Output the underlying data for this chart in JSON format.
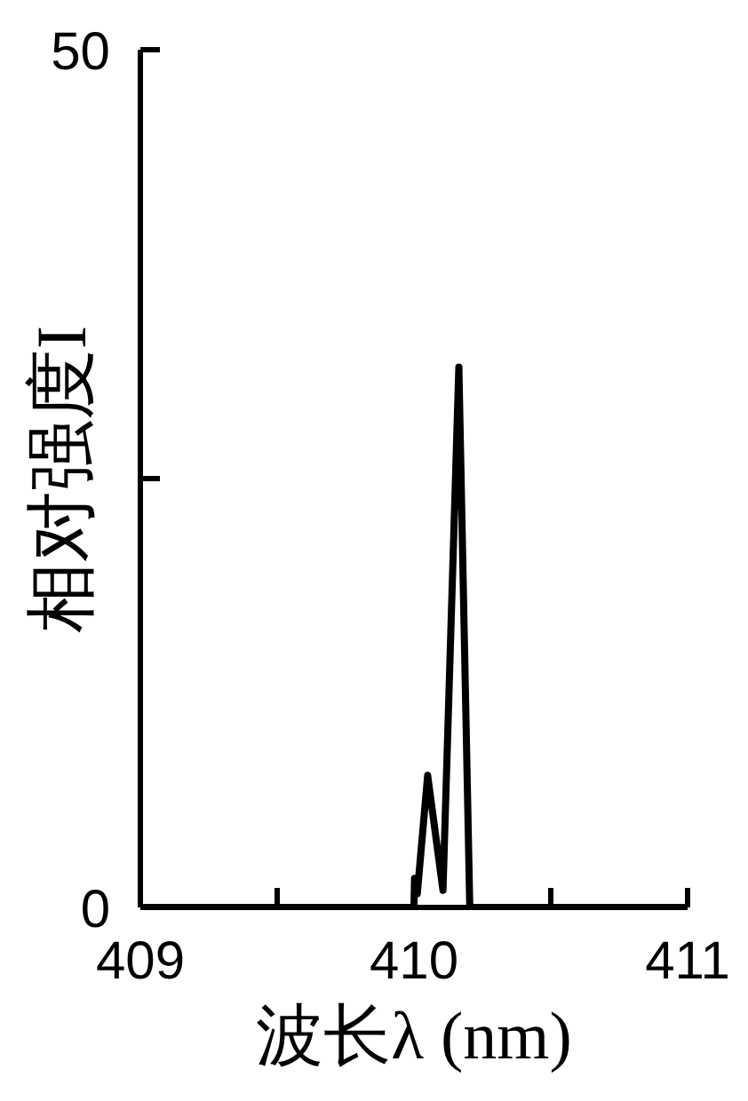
{
  "chart_data": {
    "type": "line",
    "xlabel": "波长λ (nm)",
    "ylabel": "相对强度I",
    "x": [
      409,
      410.0,
      410.002,
      410.012,
      410.05,
      410.106,
      410.164,
      410.204,
      411
    ],
    "series": [
      {
        "color": "#000000",
        "values": [
          0,
          0,
          1.7,
          0.8,
          7.7,
          1.0,
          31.5,
          0,
          0
        ]
      }
    ],
    "xlim": [
      409,
      411
    ],
    "xticks": [
      409,
      {
        "value": 409.5,
        "label": null
      },
      410,
      {
        "value": 410.5,
        "label": null
      },
      411
    ],
    "ylim": [
      0,
      50
    ],
    "yticks": [
      0,
      {
        "value": 25,
        "label": null
      },
      50
    ],
    "grid": false,
    "legend": false,
    "marker": "none",
    "line_style": "solid"
  }
}
